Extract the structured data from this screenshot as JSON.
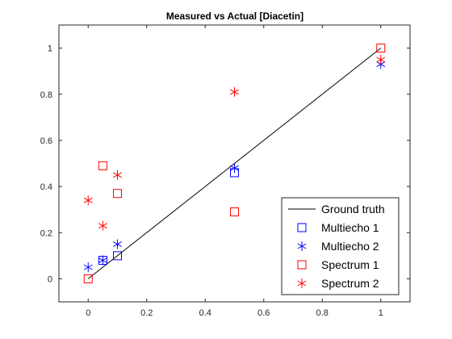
{
  "chart_data": {
    "type": "scatter",
    "title": "Measured vs Actual [Diacetin]",
    "xlabel": "",
    "ylabel": "",
    "xlim": [
      -0.1,
      1.1
    ],
    "ylim": [
      -0.1,
      1.1
    ],
    "xticks": [
      0,
      0.2,
      0.4,
      0.6,
      0.8,
      1
    ],
    "yticks": [
      0,
      0.2,
      0.4,
      0.6,
      0.8,
      1
    ],
    "xtick_labels": [
      "0",
      "0.2",
      "0.4",
      "0.6",
      "0.8",
      "1"
    ],
    "ytick_labels": [
      "0",
      "0.2",
      "0.4",
      "0.6",
      "0.8",
      "1"
    ],
    "grid": false,
    "legend_position": "bottom-right",
    "series": [
      {
        "name": "Ground truth",
        "kind": "line",
        "color": "#000000",
        "x": [
          0,
          1
        ],
        "y": [
          0,
          1
        ]
      },
      {
        "name": "Multiecho 1",
        "kind": "marker",
        "marker": "square",
        "color": "#0000ff",
        "x": [
          0.05,
          0.1,
          0.5
        ],
        "y": [
          0.08,
          0.1,
          0.46
        ]
      },
      {
        "name": "Multiecho 2",
        "kind": "marker",
        "marker": "asterisk",
        "color": "#0000ff",
        "x": [
          0,
          0.05,
          0.1,
          0.5,
          1
        ],
        "y": [
          0.05,
          0.08,
          0.15,
          0.48,
          0.93
        ]
      },
      {
        "name": "Spectrum 1",
        "kind": "marker",
        "marker": "square",
        "color": "#ff0000",
        "x": [
          0,
          0.05,
          0.1,
          0.5,
          1
        ],
        "y": [
          0.0,
          0.49,
          0.37,
          0.29,
          1.0
        ]
      },
      {
        "name": "Spectrum 2",
        "kind": "marker",
        "marker": "asterisk",
        "color": "#ff0000",
        "x": [
          0,
          0.05,
          0.1,
          0.5,
          1
        ],
        "y": [
          0.34,
          0.23,
          0.45,
          0.81,
          0.95
        ]
      }
    ]
  }
}
